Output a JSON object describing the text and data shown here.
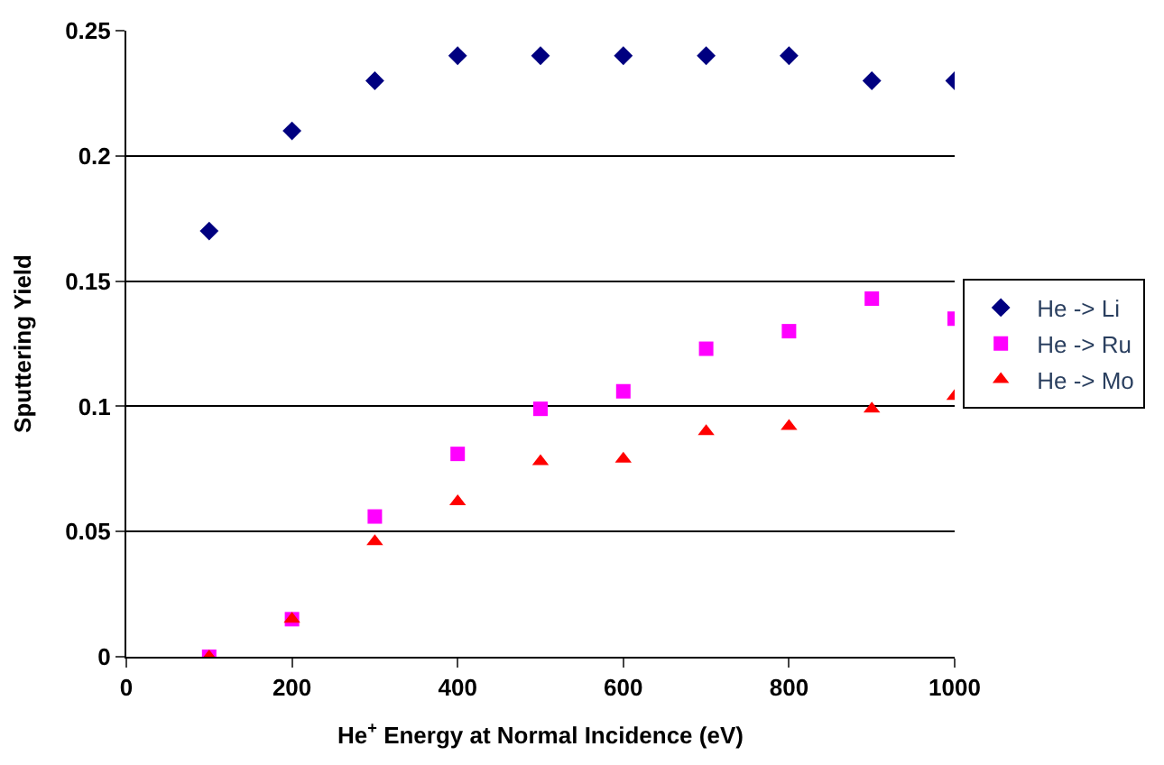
{
  "chart_data": {
    "type": "scatter",
    "xlabel": "He$^{+}$ Energy at Normal Incidence (eV)",
    "ylabel": "Sputtering Yield",
    "x": [
      100,
      200,
      300,
      400,
      500,
      600,
      700,
      800,
      900,
      1000
    ],
    "series": [
      {
        "name": "He -> Li",
        "color": "#000080",
        "marker": "diamond",
        "values": [
          0.17,
          0.21,
          0.23,
          0.24,
          0.24,
          0.24,
          0.24,
          0.24,
          0.23,
          0.23
        ]
      },
      {
        "name": "He -> Ru",
        "color": "#ff00ff",
        "marker": "square",
        "values": [
          0,
          0.015,
          0.056,
          0.081,
          0.099,
          0.106,
          0.123,
          0.13,
          0.143,
          0.135
        ]
      },
      {
        "name": "He -> Mo",
        "color": "#ff0000",
        "marker": "triangle",
        "values": [
          0,
          0.015,
          0.046,
          0.062,
          0.078,
          0.079,
          0.09,
          0.092,
          0.099,
          0.104
        ]
      }
    ],
    "xlim": [
      0,
      1000
    ],
    "xticks": [
      0,
      200,
      400,
      600,
      800,
      1000
    ],
    "ylim": [
      0,
      0.25
    ],
    "yticks": [
      0,
      0.05,
      0.1,
      0.15,
      0.2,
      0.25
    ],
    "grid": "y",
    "legend": "right"
  }
}
